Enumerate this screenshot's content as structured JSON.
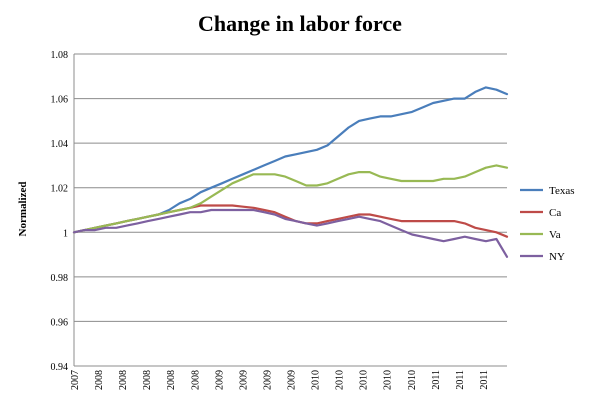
{
  "chart_data": {
    "type": "line",
    "title": "Change in labor force",
    "ylabel": "Normalized",
    "xlabel": "",
    "ylim": [
      0.94,
      1.08
    ],
    "yticks": [
      0.94,
      0.96,
      0.98,
      1,
      1.02,
      1.04,
      1.06,
      1.08
    ],
    "ytick_labels": [
      "0.94",
      "0.96",
      "0.98",
      "1",
      "1.02",
      "1.04",
      "1.06",
      "1.08"
    ],
    "x_tick_labels": [
      "2007",
      "2008",
      "2008",
      "2008",
      "2008",
      "2008",
      "2009",
      "2009",
      "2009",
      "2009",
      "2010",
      "2010",
      "2010",
      "2010",
      "2010",
      "2011",
      "2011",
      "2011"
    ],
    "grid": true,
    "legend_position": "right",
    "series": [
      {
        "name": "Texas",
        "color": "#4a7ebb",
        "values": [
          1.0,
          1.001,
          1.002,
          1.003,
          1.004,
          1.005,
          1.006,
          1.007,
          1.008,
          1.01,
          1.013,
          1.015,
          1.018,
          1.02,
          1.022,
          1.024,
          1.026,
          1.028,
          1.03,
          1.032,
          1.034,
          1.035,
          1.036,
          1.037,
          1.039,
          1.043,
          1.047,
          1.05,
          1.051,
          1.052,
          1.052,
          1.053,
          1.054,
          1.056,
          1.058,
          1.059,
          1.06,
          1.06,
          1.063,
          1.065,
          1.064,
          1.062
        ]
      },
      {
        "name": "Ca",
        "color": "#be4b48",
        "values": [
          1.0,
          1.001,
          1.002,
          1.003,
          1.004,
          1.005,
          1.006,
          1.007,
          1.008,
          1.009,
          1.01,
          1.011,
          1.012,
          1.012,
          1.012,
          1.012,
          1.0115,
          1.011,
          1.01,
          1.009,
          1.007,
          1.005,
          1.004,
          1.004,
          1.005,
          1.006,
          1.007,
          1.008,
          1.008,
          1.007,
          1.006,
          1.005,
          1.005,
          1.005,
          1.005,
          1.005,
          1.005,
          1.004,
          1.002,
          1.001,
          1.0,
          0.998
        ]
      },
      {
        "name": "Va",
        "color": "#98b954",
        "values": [
          1.0,
          1.001,
          1.002,
          1.003,
          1.004,
          1.005,
          1.006,
          1.007,
          1.008,
          1.009,
          1.01,
          1.011,
          1.013,
          1.016,
          1.019,
          1.022,
          1.024,
          1.026,
          1.026,
          1.026,
          1.025,
          1.023,
          1.021,
          1.021,
          1.022,
          1.024,
          1.026,
          1.027,
          1.027,
          1.025,
          1.024,
          1.023,
          1.023,
          1.023,
          1.023,
          1.024,
          1.024,
          1.025,
          1.027,
          1.029,
          1.03,
          1.029
        ]
      },
      {
        "name": "NY",
        "color": "#7d60a0",
        "values": [
          1.0,
          1.001,
          1.001,
          1.002,
          1.002,
          1.003,
          1.004,
          1.005,
          1.006,
          1.007,
          1.008,
          1.009,
          1.009,
          1.01,
          1.01,
          1.01,
          1.01,
          1.01,
          1.009,
          1.008,
          1.006,
          1.005,
          1.004,
          1.003,
          1.004,
          1.005,
          1.006,
          1.007,
          1.006,
          1.005,
          1.003,
          1.001,
          0.999,
          0.998,
          0.997,
          0.996,
          0.997,
          0.998,
          0.997,
          0.996,
          0.997,
          0.989
        ]
      }
    ]
  }
}
